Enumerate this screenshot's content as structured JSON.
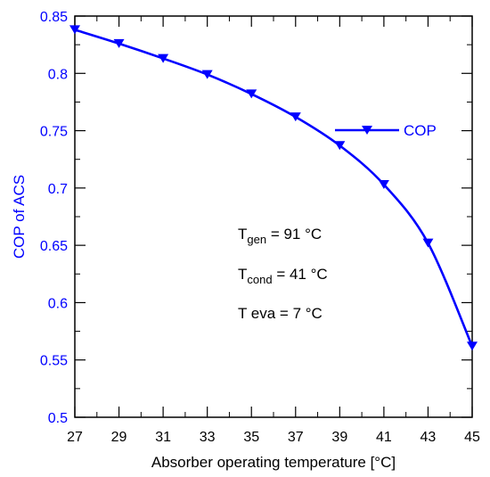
{
  "chart_data": {
    "type": "line",
    "xlabel": "Absorber operating temperature [°C]",
    "ylabel": "COP of ACS",
    "xlim": [
      27,
      45
    ],
    "ylim": [
      0.5,
      0.85
    ],
    "x_ticks": [
      "27",
      "29",
      "31",
      "33",
      "35",
      "37",
      "39",
      "41",
      "43",
      "45"
    ],
    "y_ticks": [
      "0.5",
      "0.55",
      "0.6",
      "0.65",
      "0.7",
      "0.75",
      "0.8",
      "0.85"
    ],
    "grid": false,
    "legend_position": "right",
    "series": [
      {
        "name": "COP",
        "color": "#0000ff",
        "marker": "triangle-down",
        "x": [
          27,
          29,
          31,
          33,
          35,
          37,
          39,
          41,
          43,
          45
        ],
        "y": [
          0.838,
          0.826,
          0.813,
          0.799,
          0.782,
          0.762,
          0.737,
          0.703,
          0.652,
          0.562
        ]
      }
    ],
    "annotations": {
      "gen": {
        "base": "T",
        "sub": "gen",
        "value": " = 91 °C"
      },
      "cond": {
        "base": "T",
        "sub": "cond",
        "value": " = 41 °C"
      },
      "eva": {
        "text": "T eva = 7 °C"
      }
    }
  }
}
